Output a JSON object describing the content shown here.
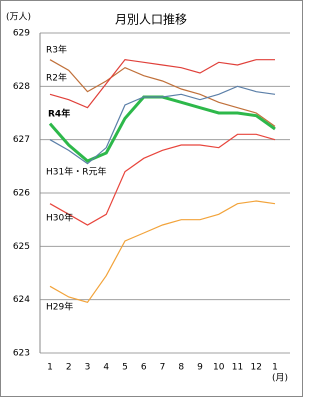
{
  "chart_data": {
    "type": "line",
    "title": "月別人口推移",
    "y_label": "(万人)",
    "x_label": "(月)",
    "categories": [
      "1",
      "2",
      "3",
      "4",
      "5",
      "6",
      "7",
      "8",
      "9",
      "10",
      "11",
      "12",
      "1"
    ],
    "ylim": [
      623,
      629
    ],
    "yticks": [
      623,
      624,
      625,
      626,
      627,
      628,
      629
    ],
    "grid": true,
    "series": [
      {
        "name": "R3年",
        "color": "#c0703a",
        "values": [
          628.5,
          628.3,
          627.9,
          628.1,
          628.35,
          628.2,
          628.1,
          627.95,
          627.85,
          627.7,
          627.6,
          627.5,
          627.25
        ]
      },
      {
        "name": "R2年",
        "color": "#e0403a",
        "values": [
          627.85,
          627.75,
          627.6,
          628.05,
          628.5,
          628.45,
          628.4,
          628.35,
          628.25,
          628.45,
          628.4,
          628.5,
          628.5
        ]
      },
      {
        "name": "R4年",
        "color": "#2db84a",
        "values": [
          627.3,
          626.9,
          626.6,
          626.75,
          627.4,
          627.8,
          627.8,
          627.7,
          627.6,
          627.5,
          627.5,
          627.45,
          627.2
        ]
      },
      {
        "name": "H31年・R元年",
        "color": "#5b7fa8",
        "values": [
          627.0,
          626.8,
          626.55,
          626.85,
          627.65,
          627.8,
          627.8,
          627.85,
          627.75,
          627.85,
          628.0,
          627.9,
          627.85
        ]
      },
      {
        "name": "H30年",
        "color": "#e8453c",
        "values": [
          625.8,
          625.6,
          625.4,
          625.6,
          626.4,
          626.65,
          626.8,
          626.9,
          626.9,
          626.85,
          627.1,
          627.1,
          627.0
        ]
      },
      {
        "name": "H29年",
        "color": "#f2a33a",
        "values": [
          624.25,
          624.05,
          623.95,
          624.45,
          625.1,
          625.25,
          625.4,
          625.5,
          625.5,
          625.6,
          625.8,
          625.85,
          625.8
        ]
      }
    ]
  }
}
